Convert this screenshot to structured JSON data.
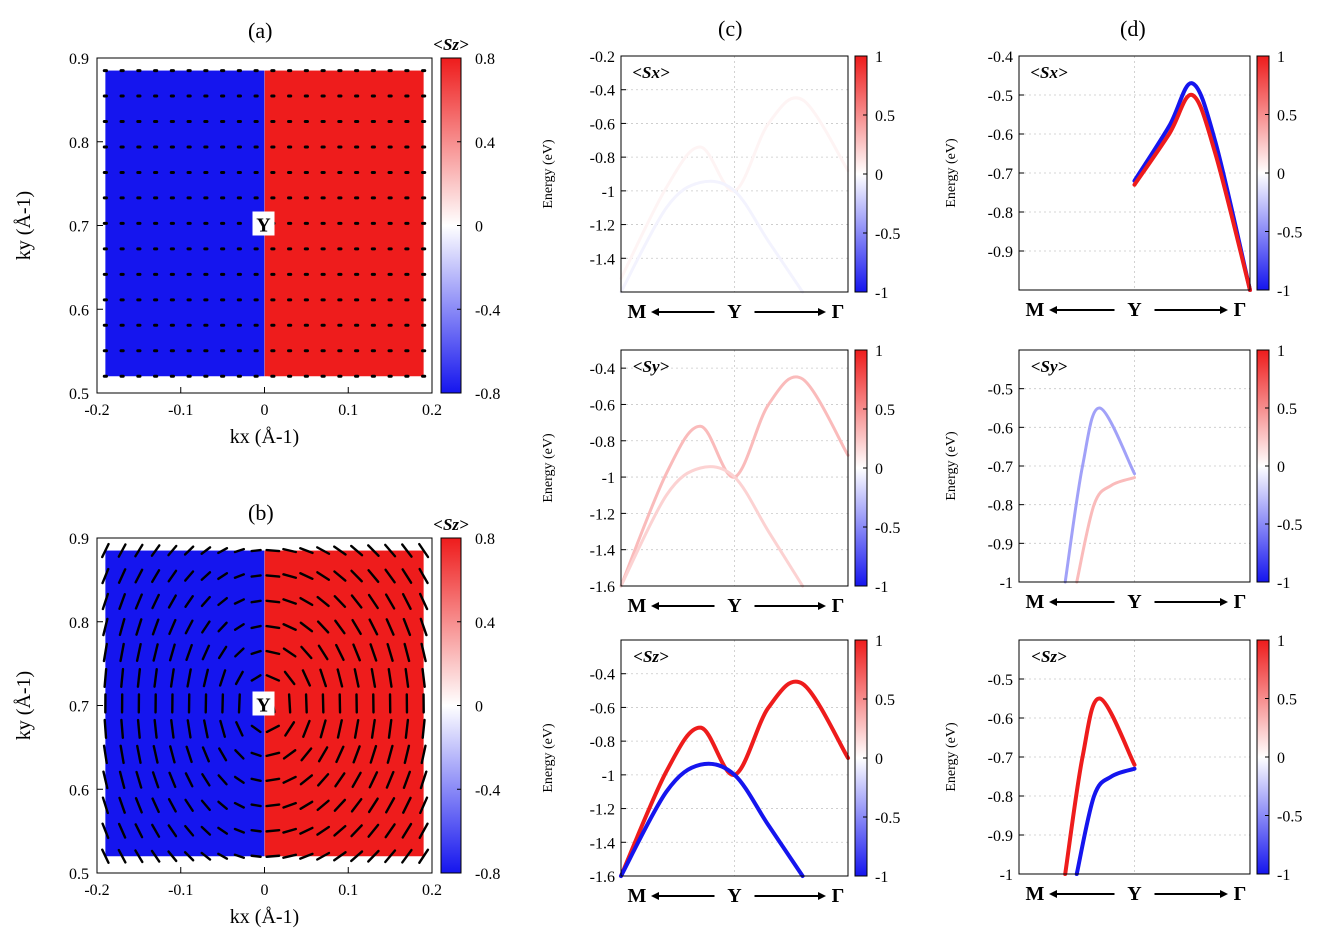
{
  "colors": {
    "red": "#ee1c1c",
    "blue": "#1515ee",
    "white": "#ffffff"
  },
  "panels": {
    "a": {
      "label": "(a)"
    },
    "b": {
      "label": "(b)"
    },
    "c": {
      "label": "(c)"
    },
    "d": {
      "label": "(d)"
    }
  },
  "y_point_label": "Y",
  "path_labels": {
    "left": "M",
    "mid": "Y",
    "right": "Γ"
  },
  "spin_labels": {
    "sx": "<Sx>",
    "sy": "<Sy>",
    "sz": "<Sz>"
  },
  "energy_axis_label": "Energy (eV)",
  "kx_label": "kx (Å-1)",
  "ky_label": "ky (Å-1)",
  "chart_data": [
    {
      "id": "a",
      "type": "heatmap",
      "title": "(a)",
      "xlabel": "kx (Å-1)",
      "ylabel": "ky (Å-1)",
      "xlim": [
        -0.2,
        0.2
      ],
      "ylim": [
        0.5,
        0.9
      ],
      "x_ticks": [
        "-0.2",
        "-0.1",
        "0",
        "0.1",
        "0.2"
      ],
      "y_ticks": [
        "0.5",
        "0.6",
        "0.7",
        "0.8",
        "0.9"
      ],
      "colorbar": {
        "label": "<Sz>",
        "range": [
          -0.8,
          0.8
        ],
        "ticks": [
          "0.8",
          "0.4",
          "0",
          "-0.4",
          "-0.8"
        ]
      },
      "field": "Sz ≈ -0.8 for kx < 0, +0.8 for kx > 0; in-plane spin arrows short (small dots)"
    },
    {
      "id": "b",
      "type": "heatmap",
      "title": "(b)",
      "xlabel": "kx (Å-1)",
      "ylabel": "ky (Å-1)",
      "xlim": [
        -0.2,
        0.2
      ],
      "ylim": [
        0.5,
        0.9
      ],
      "x_ticks": [
        "-0.2",
        "-0.1",
        "0",
        "0.1",
        "0.2"
      ],
      "y_ticks": [
        "0.5",
        "0.6",
        "0.7",
        "0.8",
        "0.9"
      ],
      "colorbar": {
        "label": "<Sz>",
        "range": [
          -0.8,
          0.8
        ],
        "ticks": [
          "0.8",
          "0.4",
          "0",
          "-0.4",
          "-0.8"
        ]
      },
      "field": "Sz ≈ -0.8 for kx < 0, +0.8 for kx > 0; long in-plane spin arrows forming vortex-like texture"
    },
    {
      "id": "c-sx",
      "type": "line",
      "spin": "<Sx>",
      "ylabel": "Energy (eV)",
      "ylim": [
        -1.6,
        -0.2
      ],
      "y_ticks": [
        "-0.2",
        "-0.4",
        "-0.6",
        "-0.8",
        "-1",
        "-1.2",
        "-1.4"
      ],
      "colorbar": {
        "range": [
          -1,
          1
        ],
        "ticks": [
          "1",
          "0.5",
          "0",
          "-0.5",
          "-1"
        ]
      },
      "series": [
        {
          "name": "band-upper",
          "x": [
            -1,
            -0.6,
            -0.3,
            0,
            0.3,
            0.6,
            1
          ],
          "y": [
            -1.52,
            -0.98,
            -0.74,
            -1.0,
            -0.6,
            -0.46,
            -0.88
          ],
          "spin": 0.05
        },
        {
          "name": "band-lower",
          "x": [
            -1,
            -0.6,
            -0.3,
            0,
            0.3,
            0.6
          ],
          "y": [
            -1.6,
            -1.1,
            -0.95,
            -1.0,
            -1.3,
            -1.6
          ],
          "spin": -0.05
        }
      ]
    },
    {
      "id": "c-sy",
      "type": "line",
      "spin": "<Sy>",
      "ylabel": "Energy (eV)",
      "ylim": [
        -1.6,
        -0.3
      ],
      "y_ticks": [
        "-0.4",
        "-0.6",
        "-0.8",
        "-1",
        "-1.2",
        "-1.4",
        "-1.6"
      ],
      "colorbar": {
        "range": [
          -1,
          1
        ],
        "ticks": [
          "1",
          "0.5",
          "0",
          "-0.5",
          "-1"
        ]
      },
      "series": [
        {
          "name": "band-upper",
          "x": [
            -1,
            -0.6,
            -0.3,
            0,
            0.3,
            0.6,
            1
          ],
          "y": [
            -1.6,
            -0.98,
            -0.72,
            -1.0,
            -0.6,
            -0.46,
            -0.88
          ],
          "spin": 0.3
        },
        {
          "name": "band-lower",
          "x": [
            -1,
            -0.6,
            -0.3,
            0,
            0.3,
            0.6
          ],
          "y": [
            -1.6,
            -1.1,
            -0.95,
            -1.0,
            -1.3,
            -1.6
          ],
          "spin": 0.2
        }
      ]
    },
    {
      "id": "c-sz",
      "type": "line",
      "spin": "<Sz>",
      "ylabel": "Energy (eV)",
      "ylim": [
        -1.6,
        -0.2
      ],
      "y_ticks": [
        "-0.4",
        "-0.6",
        "-0.8",
        "-1",
        "-1.2",
        "-1.4",
        "-1.6"
      ],
      "colorbar": {
        "range": [
          -1,
          1
        ],
        "ticks": [
          "1",
          "0.5",
          "0",
          "-0.5",
          "-1"
        ]
      },
      "series": [
        {
          "name": "band-red",
          "x": [
            -1,
            -0.6,
            -0.3,
            0,
            0.3,
            0.6,
            1
          ],
          "y": [
            -1.6,
            -0.98,
            -0.72,
            -1.0,
            -0.6,
            -0.46,
            -0.9
          ],
          "spin": 1
        },
        {
          "name": "band-blue",
          "x": [
            -1,
            -0.6,
            -0.3,
            0,
            0.3,
            0.6
          ],
          "y": [
            -1.6,
            -1.1,
            -0.94,
            -1.0,
            -1.3,
            -1.6
          ],
          "spin": -1
        }
      ]
    },
    {
      "id": "d-sx",
      "type": "line",
      "spin": "<Sx>",
      "ylabel": "Energy (eV)",
      "ylim": [
        -1.0,
        -0.4
      ],
      "y_ticks": [
        "-0.4",
        "-0.5",
        "-0.6",
        "-0.7",
        "-0.8",
        "-0.9"
      ],
      "colorbar": {
        "range": [
          -1,
          1
        ],
        "ticks": [
          "1",
          "0.5",
          "0",
          "-0.5",
          "-1"
        ]
      },
      "series": [
        {
          "name": "band-blue",
          "x": [
            0,
            0.3,
            0.5,
            0.7,
            1
          ],
          "y": [
            -0.72,
            -0.58,
            -0.47,
            -0.62,
            -1.0
          ],
          "spin": -1
        },
        {
          "name": "band-red",
          "x": [
            0,
            0.3,
            0.5,
            0.7,
            1
          ],
          "y": [
            -0.73,
            -0.6,
            -0.5,
            -0.65,
            -1.0
          ],
          "spin": 1
        }
      ]
    },
    {
      "id": "d-sy",
      "type": "line",
      "spin": "<Sy>",
      "ylabel": "Energy (eV)",
      "ylim": [
        -1.0,
        -0.4
      ],
      "y_ticks": [
        "-0.5",
        "-0.6",
        "-0.7",
        "-0.8",
        "-0.9",
        "-1"
      ],
      "colorbar": {
        "range": [
          -1,
          1
        ],
        "ticks": [
          "1",
          "0.5",
          "0",
          "-0.5",
          "-1"
        ]
      },
      "series": [
        {
          "name": "band-blue",
          "x": [
            -0.6,
            -0.45,
            -0.3,
            0
          ],
          "y": [
            -1.0,
            -0.7,
            -0.55,
            -0.72
          ],
          "spin": -0.4
        },
        {
          "name": "band-pink",
          "x": [
            -0.5,
            -0.35,
            -0.2,
            0
          ],
          "y": [
            -1.0,
            -0.8,
            -0.75,
            -0.73
          ],
          "spin": 0.3
        }
      ]
    },
    {
      "id": "d-sz",
      "type": "line",
      "spin": "<Sz>",
      "ylabel": "Energy (eV)",
      "ylim": [
        -1.0,
        -0.4
      ],
      "y_ticks": [
        "-0.5",
        "-0.6",
        "-0.7",
        "-0.8",
        "-0.9",
        "-1"
      ],
      "colorbar": {
        "range": [
          -1,
          1
        ],
        "ticks": [
          "1",
          "0.5",
          "0",
          "-0.5",
          "-1"
        ]
      },
      "series": [
        {
          "name": "band-red",
          "x": [
            -0.6,
            -0.45,
            -0.3,
            0
          ],
          "y": [
            -1.0,
            -0.7,
            -0.55,
            -0.72
          ],
          "spin": 1
        },
        {
          "name": "band-blue",
          "x": [
            -0.5,
            -0.35,
            -0.2,
            0
          ],
          "y": [
            -1.0,
            -0.8,
            -0.75,
            -0.73
          ],
          "spin": -1
        }
      ]
    }
  ]
}
